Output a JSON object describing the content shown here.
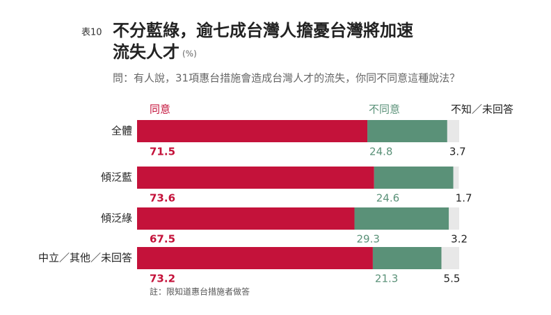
{
  "chart_data": {
    "type": "stacked-bar-horizontal",
    "table_label": "表10",
    "title": [
      "不分藍綠，逾七成台灣人擔憂台灣將加速",
      "流失人才"
    ],
    "unit": "(%)",
    "subtitle": "問：有人說，31項惠台措施會造成台灣人才的流失，你同不同意這種說法？",
    "note": "註：限知道惠台措施者做答",
    "categories": [
      "全體",
      "傾泛藍",
      "傾泛綠",
      "中立／其他／未回答"
    ],
    "xlim": [
      0,
      100
    ],
    "series": [
      {
        "name": "同意",
        "color": "#c4123a",
        "values": [
          71.5,
          73.6,
          67.5,
          73.2
        ]
      },
      {
        "name": "不同意",
        "color": "#5a9178",
        "values": [
          24.8,
          24.6,
          29.3,
          21.3
        ]
      },
      {
        "name": "不知／未回答",
        "color": "#e8e8e8",
        "values": [
          3.7,
          1.7,
          3.2,
          5.5
        ]
      }
    ]
  }
}
